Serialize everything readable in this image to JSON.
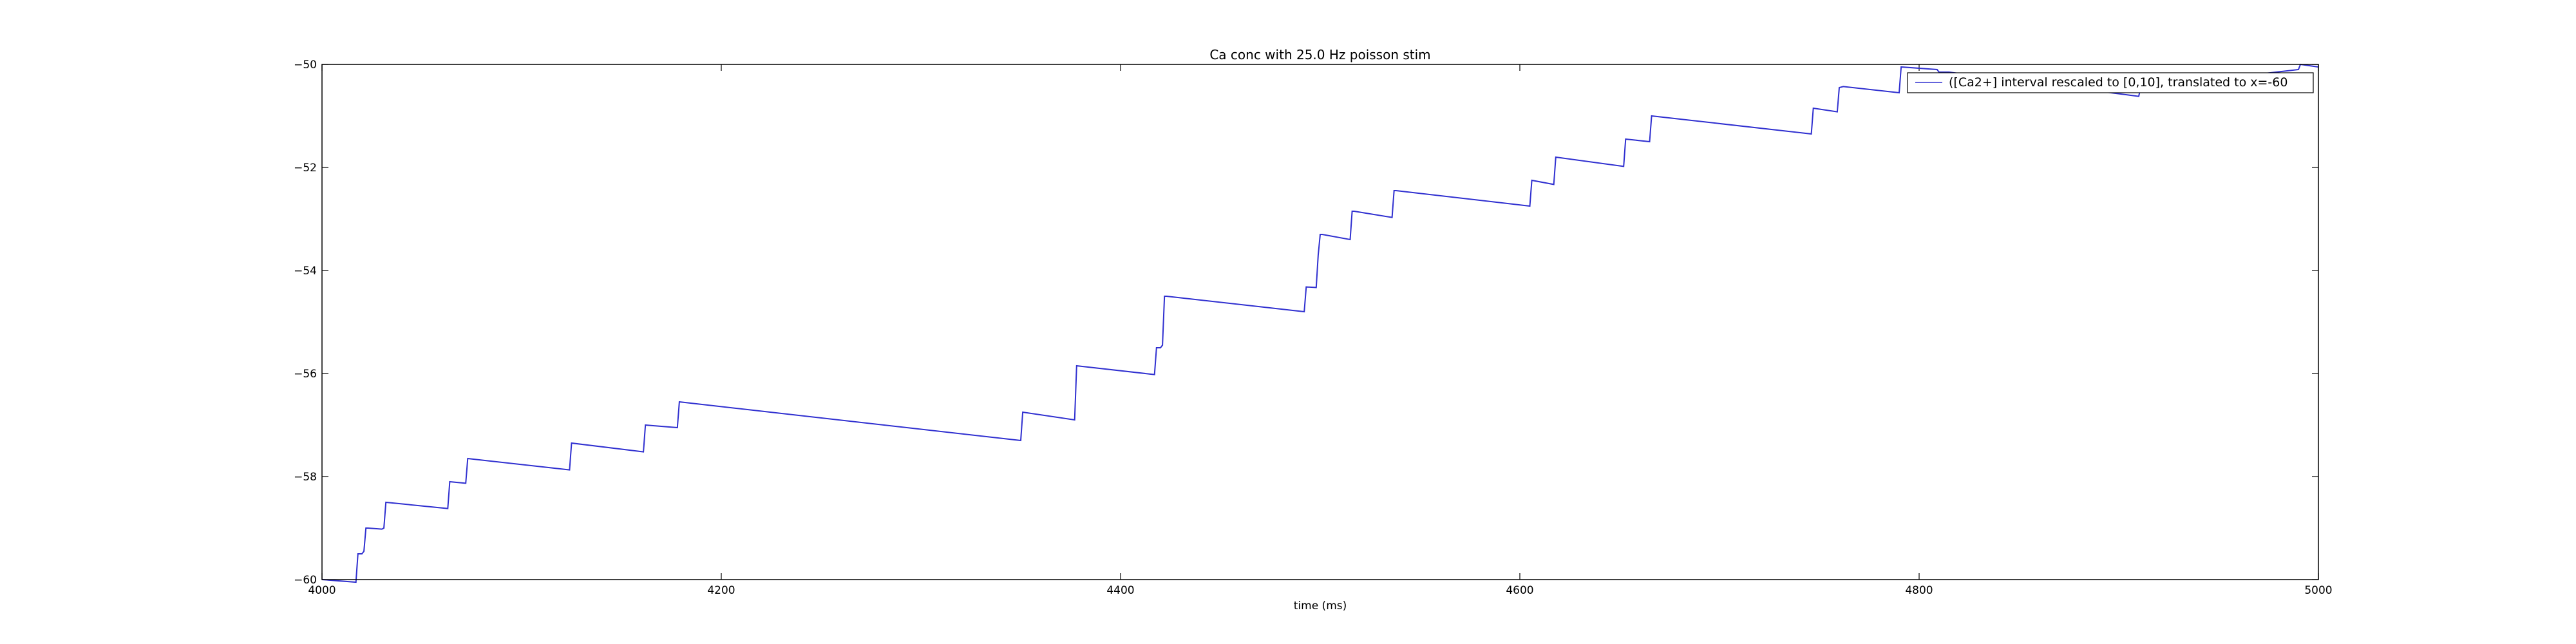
{
  "chart_data": {
    "type": "line",
    "title": "Ca conc with 25.0 Hz poisson stim",
    "xlabel": "time (ms)",
    "ylabel": "",
    "xlim": [
      4000,
      5000
    ],
    "ylim": [
      -60,
      -50
    ],
    "xticks": [
      4000,
      4200,
      4400,
      4600,
      4800,
      5000
    ],
    "yticks": [
      -60,
      -58,
      -56,
      -54,
      -52,
      -50
    ],
    "xtick_labels": [
      "4000",
      "4200",
      "4400",
      "4600",
      "4800",
      "5000"
    ],
    "ytick_labels": [
      "−60",
      "−58",
      "−56",
      "−54",
      "−52",
      "−50"
    ],
    "grid": false,
    "legend_position": "top-right",
    "series": [
      {
        "name": "([Ca2+] interval rescaled to [0,10], translated to x=-60",
        "color": "#3030d0",
        "x": [
          4000,
          4017,
          4018,
          4020,
          4021,
          4022,
          4023,
          4030,
          4031,
          4032,
          4063,
          4064,
          4072,
          4073,
          4124,
          4125,
          4161,
          4162,
          4178,
          4179,
          4350,
          4351,
          4377,
          4378,
          4417,
          4418,
          4420,
          4421,
          4422,
          4423,
          4492,
          4493,
          4498,
          4499,
          4500,
          4501,
          4515,
          4516,
          4517,
          4536,
          4537,
          4538,
          4605,
          4606,
          4617,
          4618,
          4652,
          4653,
          4665,
          4666,
          4746,
          4747,
          4759,
          4760,
          4762,
          4790,
          4791,
          4809,
          4810,
          4815,
          4910,
          4911,
          4990,
          4991,
          5000
        ],
        "y": [
          -60.0,
          -60.05,
          -59.5,
          -59.5,
          -59.45,
          -59.0,
          -59.0,
          -59.02,
          -59.0,
          -58.5,
          -58.62,
          -58.1,
          -58.13,
          -57.65,
          -57.87,
          -57.35,
          -57.52,
          -57.0,
          -57.05,
          -56.55,
          -57.3,
          -56.75,
          -56.9,
          -55.85,
          -56.02,
          -55.5,
          -55.5,
          -55.45,
          -54.5,
          -54.5,
          -54.8,
          -54.32,
          -54.33,
          -53.7,
          -53.3,
          -53.3,
          -53.4,
          -52.85,
          -52.85,
          -52.97,
          -52.45,
          -52.45,
          -52.75,
          -52.25,
          -52.33,
          -51.8,
          -51.98,
          -51.45,
          -51.5,
          -51.0,
          -51.35,
          -50.85,
          -50.92,
          -50.45,
          -50.43,
          -50.55,
          -50.05,
          -50.1,
          -50.15,
          -50.15,
          -50.62,
          -50.45,
          -50.1,
          -50.0,
          -50.05
        ]
      }
    ]
  }
}
